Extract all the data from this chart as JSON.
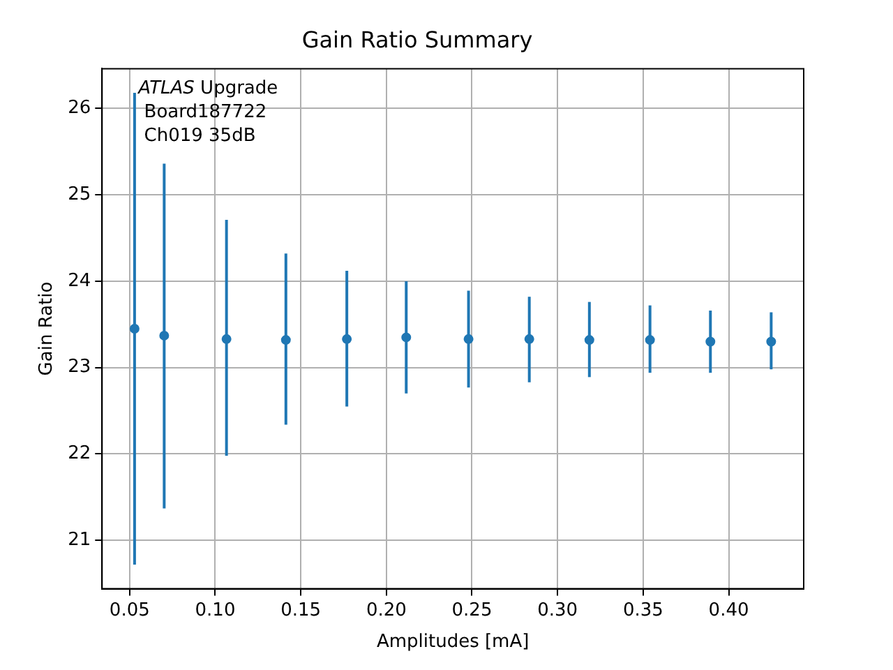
{
  "chart_data": {
    "type": "scatter",
    "title": "Gain Ratio Summary",
    "xlabel": "Amplitudes [mA]",
    "ylabel": "Gain Ratio",
    "annotations": [
      "ATLAS Upgrade",
      "Board187722",
      "Ch019 35dB"
    ],
    "series": [
      {
        "color": "#1f77b4",
        "x": [
          0.0529,
          0.0702,
          0.1066,
          0.1413,
          0.1769,
          0.2116,
          0.248,
          0.2835,
          0.3186,
          0.354,
          0.3893,
          0.4248
        ],
        "values": [
          23.45,
          23.37,
          23.33,
          23.32,
          23.33,
          23.35,
          23.33,
          23.33,
          23.32,
          23.32,
          23.3,
          23.3
        ],
        "errors": [
          [
            20.72,
            26.18
          ],
          [
            21.37,
            25.36
          ],
          [
            21.98,
            24.71
          ],
          [
            22.34,
            24.32
          ],
          [
            22.55,
            24.12
          ],
          [
            22.7,
            24.0
          ],
          [
            22.77,
            23.89
          ],
          [
            22.83,
            23.82
          ],
          [
            22.89,
            23.76
          ],
          [
            22.94,
            23.72
          ],
          [
            22.94,
            23.66
          ],
          [
            22.98,
            23.64
          ]
        ]
      }
    ],
    "xlim": [
      0.0339,
      0.4438
    ],
    "xticks": [
      {
        "value": 0.05,
        "label": "0.05"
      },
      {
        "value": 0.1,
        "label": "0.10"
      },
      {
        "value": 0.15,
        "label": "0.15"
      },
      {
        "value": 0.2,
        "label": "0.20"
      },
      {
        "value": 0.25,
        "label": "0.25"
      },
      {
        "value": 0.3,
        "label": "0.30"
      },
      {
        "value": 0.35,
        "label": "0.35"
      },
      {
        "value": 0.4,
        "label": "0.40"
      }
    ],
    "ylim": [
      20.44,
      26.46
    ],
    "yticks": [
      21,
      22,
      23,
      24,
      25,
      26
    ],
    "grid": true,
    "legend": false,
    "marker": "circle"
  }
}
